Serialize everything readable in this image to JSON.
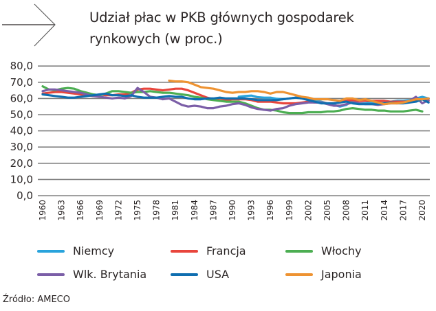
{
  "header": {
    "title_line1": "Udział płac w PKB głównych gospodarek",
    "title_line2": "rynkowych (w proc.)"
  },
  "source": "Źródło: AMECO",
  "chart_data": {
    "type": "line",
    "title": "Udział płac w PKB głównych gospodarek rynkowych (w proc.)",
    "xlabel": "",
    "ylabel": "",
    "ylim": [
      0,
      80
    ],
    "yticks": [
      "80,0",
      "70,0",
      "60,0",
      "50,0",
      "40,0",
      "30,0",
      "20,0",
      "10,0",
      "0,0"
    ],
    "xticks": [
      "1960",
      "1963",
      "1966",
      "1969",
      "1972",
      "1975",
      "1978",
      "1981",
      "1984",
      "1987",
      "1990",
      "1993",
      "1996",
      "1999",
      "2002",
      "2005",
      "2008",
      "2011",
      "2014",
      "2017",
      "2020"
    ],
    "grid": true,
    "legend_position": "bottom",
    "x_start": 1960,
    "series": [
      {
        "name": "Niemcy",
        "color": "#29a3dc",
        "start": 1991,
        "values": [
          61.0,
          61.5,
          61.8,
          60.8,
          60.5,
          60.5,
          59.8,
          59.5,
          60.0,
          60.5,
          60.0,
          59.5,
          59.0,
          58.0,
          57.0,
          56.0,
          55.0,
          56.0,
          58.5,
          57.0,
          57.0,
          57.5,
          58.0,
          58.0,
          58.0,
          58.5,
          58.5,
          59.0,
          60.0,
          61.0,
          60.0
        ]
      },
      {
        "name": "Francja",
        "color": "#e8453c",
        "start": 1960,
        "values": [
          63.0,
          63.5,
          64.0,
          64.0,
          63.5,
          63.0,
          62.5,
          62.0,
          61.5,
          62.5,
          62.0,
          62.0,
          62.5,
          62.5,
          63.5,
          65.5,
          66.0,
          66.0,
          65.5,
          65.0,
          65.5,
          66.0,
          66.0,
          65.0,
          63.5,
          62.0,
          60.5,
          59.5,
          59.0,
          59.0,
          59.5,
          59.5,
          59.5,
          59.0,
          58.0,
          58.0,
          58.0,
          57.5,
          57.0,
          57.0,
          57.0,
          57.5,
          58.0,
          57.5,
          57.5,
          57.0,
          57.0,
          57.5,
          58.5,
          59.0,
          58.5,
          58.5,
          58.5,
          58.5,
          58.5,
          58.0,
          58.0,
          58.0,
          58.0,
          58.5,
          59.5,
          58.5
        ]
      },
      {
        "name": "Włochy",
        "color": "#4cae52",
        "start": 1960,
        "values": [
          67.5,
          65.5,
          65.0,
          66.0,
          66.5,
          66.0,
          64.5,
          63.5,
          62.5,
          62.0,
          63.0,
          64.5,
          64.5,
          64.0,
          63.5,
          64.0,
          64.0,
          64.5,
          64.0,
          63.5,
          63.5,
          63.0,
          62.5,
          62.0,
          61.0,
          60.5,
          59.5,
          59.0,
          58.5,
          58.0,
          58.0,
          58.0,
          57.0,
          55.5,
          54.0,
          53.0,
          53.0,
          52.5,
          51.5,
          51.0,
          51.0,
          51.0,
          51.5,
          51.5,
          51.5,
          52.0,
          52.0,
          52.5,
          53.5,
          54.0,
          53.5,
          53.0,
          53.0,
          52.5,
          52.5,
          52.0,
          52.0,
          52.0,
          52.5,
          53.0,
          52.0
        ]
      },
      {
        "name": "Wlk. Brytania",
        "color": "#7b5ea7",
        "start": 1960,
        "values": [
          64.5,
          65.5,
          65.5,
          65.0,
          64.5,
          64.0,
          63.5,
          62.5,
          61.5,
          61.0,
          60.5,
          60.0,
          60.5,
          60.0,
          61.5,
          66.5,
          64.0,
          61.0,
          60.5,
          59.5,
          60.0,
          58.0,
          56.0,
          55.0,
          55.5,
          55.0,
          54.0,
          54.0,
          55.0,
          55.5,
          56.5,
          57.0,
          56.0,
          54.5,
          53.5,
          53.0,
          52.5,
          53.5,
          54.0,
          55.5,
          56.5,
          57.0,
          57.5,
          57.5,
          57.5,
          56.5,
          55.5,
          55.5,
          56.5,
          57.5,
          57.0,
          56.5,
          56.5,
          56.0,
          56.5,
          57.0,
          57.0,
          57.5,
          58.5,
          61.0,
          57.0,
          59.0
        ]
      },
      {
        "name": "USA",
        "color": "#0f6eb0",
        "start": 1960,
        "values": [
          62.5,
          62.0,
          61.5,
          61.0,
          60.5,
          60.5,
          61.0,
          61.5,
          62.0,
          62.5,
          63.0,
          62.0,
          62.0,
          61.5,
          62.0,
          61.0,
          60.5,
          60.5,
          60.5,
          61.0,
          61.5,
          61.0,
          61.0,
          60.0,
          59.5,
          59.5,
          60.0,
          60.0,
          60.5,
          60.0,
          60.0,
          60.0,
          60.0,
          59.5,
          59.0,
          59.0,
          59.0,
          59.0,
          59.5,
          60.0,
          60.5,
          60.0,
          59.0,
          58.0,
          57.0,
          57.0,
          57.0,
          57.5,
          58.0,
          57.0,
          56.5,
          56.5,
          56.5,
          56.5,
          57.0,
          57.5,
          57.0,
          57.0,
          57.5,
          58.0,
          59.5,
          57.5
        ]
      },
      {
        "name": "Japonia",
        "color": "#ee9332",
        "start": 1980,
        "values": [
          71.0,
          70.5,
          70.5,
          70.0,
          68.5,
          67.0,
          66.5,
          66.0,
          65.0,
          64.0,
          63.5,
          64.0,
          64.0,
          64.5,
          64.5,
          64.0,
          63.0,
          64.0,
          64.0,
          63.0,
          62.0,
          61.0,
          60.5,
          59.5,
          59.5,
          59.5,
          59.0,
          58.5,
          60.0,
          60.0,
          59.0,
          59.5,
          58.5,
          57.5,
          56.5,
          57.0,
          57.0,
          57.5,
          58.5,
          59.5,
          59.5,
          60.0
        ]
      }
    ]
  },
  "legend": [
    {
      "label": "Niemcy",
      "color": "#29a3dc"
    },
    {
      "label": "Francja",
      "color": "#e8453c"
    },
    {
      "label": "Włochy",
      "color": "#4cae52"
    },
    {
      "label": "Wlk. Brytania",
      "color": "#7b5ea7"
    },
    {
      "label": "USA",
      "color": "#0f6eb0"
    },
    {
      "label": "Japonia",
      "color": "#ee9332"
    }
  ]
}
